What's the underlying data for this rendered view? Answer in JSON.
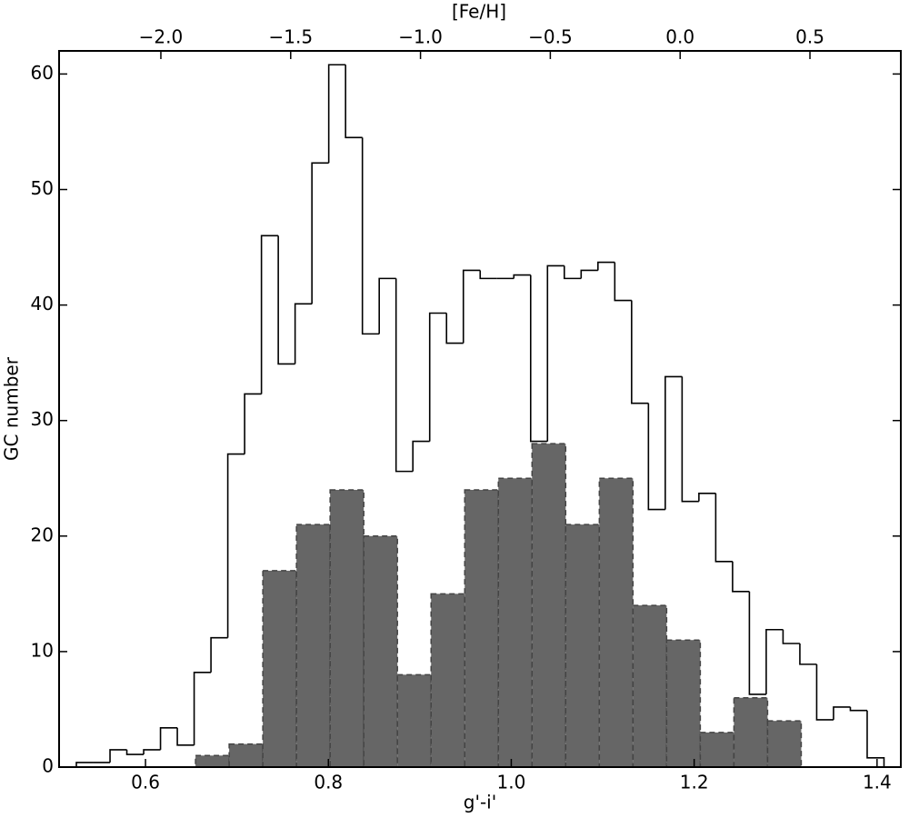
{
  "chart_data": {
    "type": "histogram",
    "xlabel": "g'-i'",
    "ylabel": "GC number",
    "x2label": "[Fe/H]",
    "xlim": [
      0.5055,
      1.426
    ],
    "ylim": [
      0,
      62
    ],
    "xticks": [
      0.6,
      0.8,
      {
        "value": 1,
        "label": "1.0"
      },
      1.2,
      1.4
    ],
    "yticks": [
      0,
      10,
      20,
      30,
      40,
      50,
      60
    ],
    "x2lim": [
      -2.392,
      0.85
    ],
    "x2ticks": [
      {
        "value": -2,
        "label": "−2.0"
      },
      {
        "value": -1.5,
        "label": "−1.5"
      },
      {
        "value": -1,
        "label": "−1.0"
      },
      {
        "value": -0.5,
        "label": "−0.5"
      },
      {
        "value": 0,
        "label": "0.0"
      },
      0.5
    ],
    "series": [
      {
        "color": "#000000",
        "filled": false,
        "bins": [
          0.5244,
          0.5428,
          0.5612,
          0.5796,
          0.598,
          0.6164,
          0.6348,
          0.6532,
          0.6716,
          0.69,
          0.7084,
          0.7268,
          0.7452,
          0.7636,
          0.782,
          0.8004,
          0.8188,
          0.8372,
          0.8556,
          0.874,
          0.8924,
          0.9108,
          0.9292,
          0.9476,
          0.966,
          0.9844,
          1.0028,
          1.0212,
          1.0396,
          1.058,
          1.0764,
          1.0948,
          1.1132,
          1.1316,
          1.15,
          1.1684,
          1.1868,
          1.2052,
          1.2236,
          1.242,
          1.2604,
          1.2788,
          1.2972,
          1.3156,
          1.334,
          1.3524,
          1.3708,
          1.3892,
          1.4076
        ],
        "values": [
          0.4,
          0.4,
          1.5,
          1.1,
          1.5,
          3.4,
          1.9,
          8.2,
          11.2,
          27.1,
          32.3,
          46.0,
          34.9,
          40.1,
          52.3,
          60.8,
          54.5,
          37.5,
          42.3,
          25.6,
          28.2,
          39.3,
          36.7,
          43.0,
          42.3,
          42.3,
          42.6,
          28.2,
          43.4,
          42.3,
          43.0,
          43.7,
          40.4,
          31.5,
          22.3,
          33.8,
          23.0,
          23.7,
          17.8,
          15.2,
          6.3,
          11.9,
          10.7,
          8.9,
          4.1,
          5.2,
          4.9,
          0.8
        ]
      },
      {
        "color": "#666666",
        "edgecolor": "#444444",
        "filled": true,
        "linestyle": "dashed",
        "bins": [
          0.6547,
          0.6915,
          0.7283,
          0.7651,
          0.8019,
          0.8387,
          0.8755,
          0.9123,
          0.9491,
          0.9859,
          1.0227,
          1.0595,
          1.0963,
          1.1331,
          1.1699,
          1.2067,
          1.2435,
          1.2803,
          1.3171
        ],
        "values": [
          1,
          2,
          17,
          21,
          24,
          20,
          8,
          15,
          24,
          25,
          28,
          21,
          25,
          14,
          11,
          3,
          6,
          4
        ]
      }
    ]
  }
}
